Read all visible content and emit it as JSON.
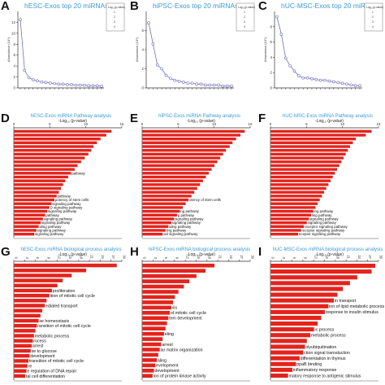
{
  "panel_letters": [
    "A",
    "B",
    "C",
    "D",
    "E",
    "F",
    "G",
    "H",
    "I"
  ],
  "chart_data": [
    {
      "id": "A",
      "type": "line",
      "title": "hESC-Exos top 20 miRNAs",
      "ylabel": "Abundance (10⁵)",
      "ylim": [
        0,
        14
      ],
      "yticks": [
        0,
        2,
        4,
        6,
        8,
        10,
        12
      ],
      "x": [
        1,
        2,
        3,
        4,
        5,
        6,
        7,
        8,
        9,
        10,
        11,
        12,
        13,
        14,
        15,
        16,
        17,
        18,
        19,
        20
      ],
      "series": [
        {
          "values": [
            12.5,
            3.2,
            1.9,
            1.5,
            1.3,
            1.1,
            1.0,
            0.9,
            0.8,
            0.7,
            0.7,
            0.6,
            0.6,
            0.5,
            0.5,
            0.5,
            0.4,
            0.4,
            0.4,
            0.3
          ]
        }
      ],
      "legend_lines": [
        "Log₁₀(p-value)",
        "1",
        "2",
        "3",
        "4"
      ]
    },
    {
      "id": "B",
      "type": "line",
      "title": "hiPSC-Exos top 20 miRNAs",
      "ylabel": "Abundance (10⁵)",
      "ylim": [
        0,
        8
      ],
      "yticks": [
        0,
        2,
        4,
        6
      ],
      "x": [
        1,
        2,
        3,
        4,
        5,
        6,
        7,
        8,
        9,
        10,
        11,
        12,
        13,
        14,
        15,
        16,
        17,
        18,
        19,
        20
      ],
      "series": [
        {
          "values": [
            6.8,
            4.6,
            2.4,
            2.0,
            1.3,
            1.0,
            0.8,
            0.7,
            0.6,
            0.5,
            0.5,
            0.4,
            0.4,
            0.3,
            0.3,
            0.3,
            0.3,
            0.2,
            0.2,
            0.2
          ]
        }
      ],
      "legend_lines": [
        "Log₁₀(p-value)",
        "1",
        "2",
        "3",
        "4"
      ]
    },
    {
      "id": "C",
      "type": "line",
      "title": "hUC-MSC-Exos top 20 miRNAs",
      "ylabel": "Abundance (10⁵)",
      "ylim": [
        0,
        10
      ],
      "yticks": [
        0,
        2,
        4,
        6,
        8
      ],
      "x": [
        1,
        2,
        3,
        4,
        5,
        6,
        7,
        8,
        9,
        10,
        11,
        12,
        13,
        14,
        15,
        16,
        17,
        18,
        19,
        20
      ],
      "series": [
        {
          "values": [
            9.3,
            7.0,
            3.9,
            2.9,
            2.2,
            1.6,
            1.3,
            1.3,
            1.2,
            1.1,
            1.0,
            1.0,
            0.9,
            0.8,
            0.7,
            0.6,
            0.5,
            0.4,
            0.3,
            0.3
          ]
        }
      ],
      "legend_lines": [
        "Log₁₀(p-value)",
        "1",
        "2",
        "3",
        "4"
      ]
    },
    {
      "id": "D",
      "type": "bar",
      "title": "hESC-Exos miRNA Pathway analysis",
      "xlabel": "-Log₁₀ (p-value)",
      "xlim": [
        0,
        15
      ],
      "xticks": [
        0,
        5,
        10,
        15
      ],
      "categories": [
        "",
        "",
        "",
        "",
        "",
        "",
        "",
        "",
        "",
        "",
        "",
        "pathway",
        "",
        "",
        "",
        "",
        "",
        "pathway",
        "potency of stem cells",
        "signaling pathway",
        "D signaling pathway",
        "signaling pathway",
        "pathway",
        "signaling pathway",
        "signaling pathway",
        "aling pathway",
        "signaling pathway",
        "signaling pathway"
      ],
      "values": [
        13.5,
        12.8,
        12.0,
        11.5,
        11.0,
        10.7,
        10.3,
        9.8,
        9.3,
        8.8,
        8.4,
        7.9,
        7.5,
        7.1,
        6.8,
        6.5,
        6.2,
        5.9,
        5.6,
        5.2,
        4.9,
        4.6,
        4.3,
        4.0,
        3.7,
        3.4,
        3.1,
        2.8
      ]
    },
    {
      "id": "E",
      "type": "bar",
      "title": "hiPSC-Exos miRNA Pathway analysis",
      "xlabel": "-Log₁₀ (p-value)",
      "xlim": [
        0,
        15
      ],
      "xticks": [
        0,
        5,
        10,
        15
      ],
      "categories": [
        "",
        "",
        "",
        "",
        "",
        "",
        "",
        "",
        "",
        "",
        "",
        "",
        "",
        "",
        "",
        "",
        "",
        "",
        "otency of stem cells",
        "",
        "",
        "ng pathway",
        "g pathway",
        "signaling pathway",
        "signaling pathway",
        "aling pathway",
        "ling pathway",
        "oid signaling pathway"
      ],
      "values": [
        14.2,
        13.6,
        13.0,
        12.5,
        12.1,
        11.6,
        11.2,
        10.8,
        10.4,
        10.0,
        9.6,
        9.2,
        8.8,
        8.4,
        8.0,
        7.6,
        7.2,
        6.8,
        6.4,
        6.0,
        5.6,
        5.2,
        4.8,
        4.4,
        4.0,
        3.6,
        3.2,
        2.8
      ]
    },
    {
      "id": "F",
      "type": "bar",
      "title": "hUC-MSC-Exos miRNA Pathway analysis",
      "xlabel": "-Log₁₀ (p-value)",
      "xlim": [
        0,
        15
      ],
      "xticks": [
        0,
        5,
        10,
        15
      ],
      "categories": [
        "",
        "",
        "",
        "",
        "",
        "",
        "",
        "",
        "",
        "",
        "",
        "",
        "",
        "",
        "",
        "",
        "",
        "",
        "",
        "",
        "",
        "ing pathway",
        "ling pathway",
        "signaling pathway",
        "signaling pathway",
        "receptor signaling pathway",
        "receptor signaling pathway",
        "eceptor signaling pathway"
      ],
      "values": [
        14.0,
        13.2,
        11.8,
        11.4,
        11.0,
        10.7,
        10.4,
        10.1,
        9.8,
        9.5,
        9.2,
        8.9,
        8.6,
        8.3,
        8.0,
        7.7,
        7.4,
        7.1,
        6.8,
        6.5,
        6.2,
        5.9,
        5.6,
        5.3,
        5.0,
        4.6,
        4.2,
        3.8
      ]
    },
    {
      "id": "G",
      "type": "bar",
      "title": "hESC-Exos miRNA biological process analysis",
      "xlabel": "-Log₁₀ (p-value)",
      "xlim": [
        0,
        30
      ],
      "xticks": [
        0,
        3,
        6,
        9,
        12,
        15,
        18,
        21,
        24,
        27,
        30
      ],
      "categories": [
        "",
        "",
        "",
        "",
        "",
        "proliferation",
        "ition of mitotic cell cycle",
        "",
        "ediated transport",
        "",
        "",
        "se homeostasis",
        "ransition of mitotic cell cycle",
        "",
        "metabolic process",
        "rocess",
        "arrest",
        "se to glucose",
        "development",
        "transition of mitotic cell cycle",
        "re",
        "e regulation of DNA repair",
        "tal cell differentiation"
      ],
      "values": [
        28.5,
        20.0,
        16.0,
        13.5,
        12.0,
        10.5,
        9.8,
        9.0,
        8.5,
        7.8,
        7.3,
        6.8,
        6.3,
        5.9,
        5.5,
        5.2,
        4.9,
        4.6,
        4.3,
        4.0,
        3.7,
        3.4,
        3.1
      ]
    },
    {
      "id": "H",
      "type": "bar",
      "title": "hiPSC-Exos miRNA biological process analysis",
      "xlabel": "-Log₁₀ (p-value)",
      "xlim": [
        0,
        30
      ],
      "xticks": [
        0,
        3,
        6,
        9,
        12,
        15,
        18,
        21,
        24,
        27,
        30
      ],
      "categories": [
        "",
        "",
        "",
        "",
        "",
        "",
        "",
        "",
        "xis",
        "of mitotic cell cycle",
        "tem development",
        "",
        "",
        "eling",
        "",
        "arrest",
        "lar matrix organization",
        "",
        "aling",
        "evelopment",
        "development",
        "ion of protein kinase activity"
      ],
      "values": [
        20.0,
        17.5,
        15.0,
        13.0,
        11.5,
        10.0,
        9.0,
        8.5,
        8.0,
        7.6,
        7.2,
        6.8,
        6.4,
        6.0,
        5.6,
        5.2,
        4.8,
        4.4,
        4.0,
        3.6,
        3.2,
        2.8
      ]
    },
    {
      "id": "I",
      "type": "bar",
      "title": "hUC-MSC-Exos miRNA biological process analysis",
      "xlabel": "-Log₁₀ (p-value)",
      "xlim": [
        0,
        30
      ],
      "xticks": [
        0,
        3,
        6,
        9,
        12,
        15,
        18,
        21,
        24,
        27,
        30
      ],
      "categories": [
        "",
        "",
        "",
        "",
        "",
        "",
        "in transport",
        "ion of lipid metabolic process",
        "response to insulin stimulus",
        "",
        "",
        "ic process",
        "metabolic process",
        "",
        "olyubiquitination",
        "ction signal transduction",
        "differentiation in thymus",
        "ppaB binding",
        "inflammatory response",
        "matory response to antigenic stimulus"
      ],
      "values": [
        29.0,
        28.0,
        24.0,
        22.0,
        20.0,
        18.5,
        17.5,
        16.0,
        15.0,
        14.0,
        13.0,
        12.0,
        11.0,
        10.0,
        9.5,
        9.0,
        8.0,
        7.0,
        6.0,
        4.8
      ]
    }
  ]
}
